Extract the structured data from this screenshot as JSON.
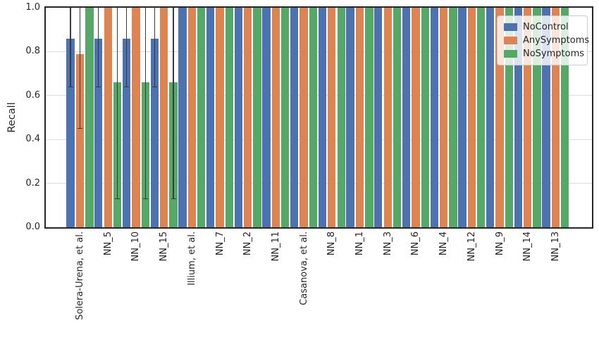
{
  "chart_data": {
    "type": "bar",
    "title": "",
    "xlabel": "",
    "ylabel": "Recall",
    "ylim": [
      0.0,
      1.0
    ],
    "yticks": [
      0.0,
      0.2,
      0.4,
      0.6,
      0.8,
      1.0
    ],
    "grid": true,
    "legend_position": "upper-right",
    "error_bar_color": "#3a3a3a",
    "categories": [
      "Solera-Urena, et al.",
      "NN_5",
      "NN_10",
      "NN_15",
      "Illium, et al.",
      "NN_7",
      "NN_2",
      "NN_11",
      "Casanova, et al.",
      "NN_8",
      "NN_1",
      "NN_3",
      "NN_6",
      "NN_4",
      "NN_12",
      "NN_9",
      "NN_14",
      "NN_13"
    ],
    "series": [
      {
        "name": "NoControl",
        "color": "#4C72B0",
        "values": [
          0.86,
          0.86,
          0.86,
          0.86,
          1.0,
          1.0,
          1.0,
          1.0,
          1.0,
          1.0,
          1.0,
          1.0,
          1.0,
          1.0,
          1.0,
          1.0,
          1.0,
          1.0
        ],
        "error_low": [
          0.64,
          0.64,
          0.64,
          0.64,
          null,
          null,
          null,
          null,
          null,
          null,
          null,
          null,
          null,
          null,
          null,
          null,
          null,
          null
        ],
        "error_high": [
          1.0,
          1.0,
          1.0,
          1.0,
          null,
          null,
          null,
          null,
          null,
          null,
          null,
          null,
          null,
          null,
          null,
          null,
          null,
          null
        ]
      },
      {
        "name": "AnySymptoms",
        "color": "#DD8452",
        "values": [
          0.79,
          1.0,
          1.0,
          1.0,
          1.0,
          1.0,
          1.0,
          1.0,
          1.0,
          1.0,
          1.0,
          1.0,
          1.0,
          1.0,
          1.0,
          1.0,
          1.0,
          1.0
        ],
        "error_low": [
          0.45,
          null,
          null,
          null,
          null,
          null,
          null,
          null,
          null,
          null,
          null,
          null,
          null,
          null,
          null,
          null,
          null,
          null
        ],
        "error_high": [
          1.0,
          null,
          null,
          null,
          null,
          null,
          null,
          null,
          null,
          null,
          null,
          null,
          null,
          null,
          null,
          null,
          null,
          null
        ]
      },
      {
        "name": "NoSymptoms",
        "color": "#55A868",
        "values": [
          1.0,
          0.66,
          0.66,
          0.66,
          1.0,
          1.0,
          1.0,
          1.0,
          1.0,
          1.0,
          1.0,
          1.0,
          1.0,
          1.0,
          1.0,
          1.0,
          1.0,
          1.0
        ],
        "error_low": [
          null,
          0.13,
          0.13,
          0.13,
          null,
          null,
          null,
          null,
          null,
          null,
          null,
          null,
          null,
          null,
          null,
          null,
          null,
          null
        ],
        "error_high": [
          null,
          1.0,
          1.0,
          1.0,
          null,
          null,
          null,
          null,
          null,
          null,
          null,
          null,
          null,
          null,
          null,
          null,
          null,
          null
        ]
      }
    ]
  }
}
